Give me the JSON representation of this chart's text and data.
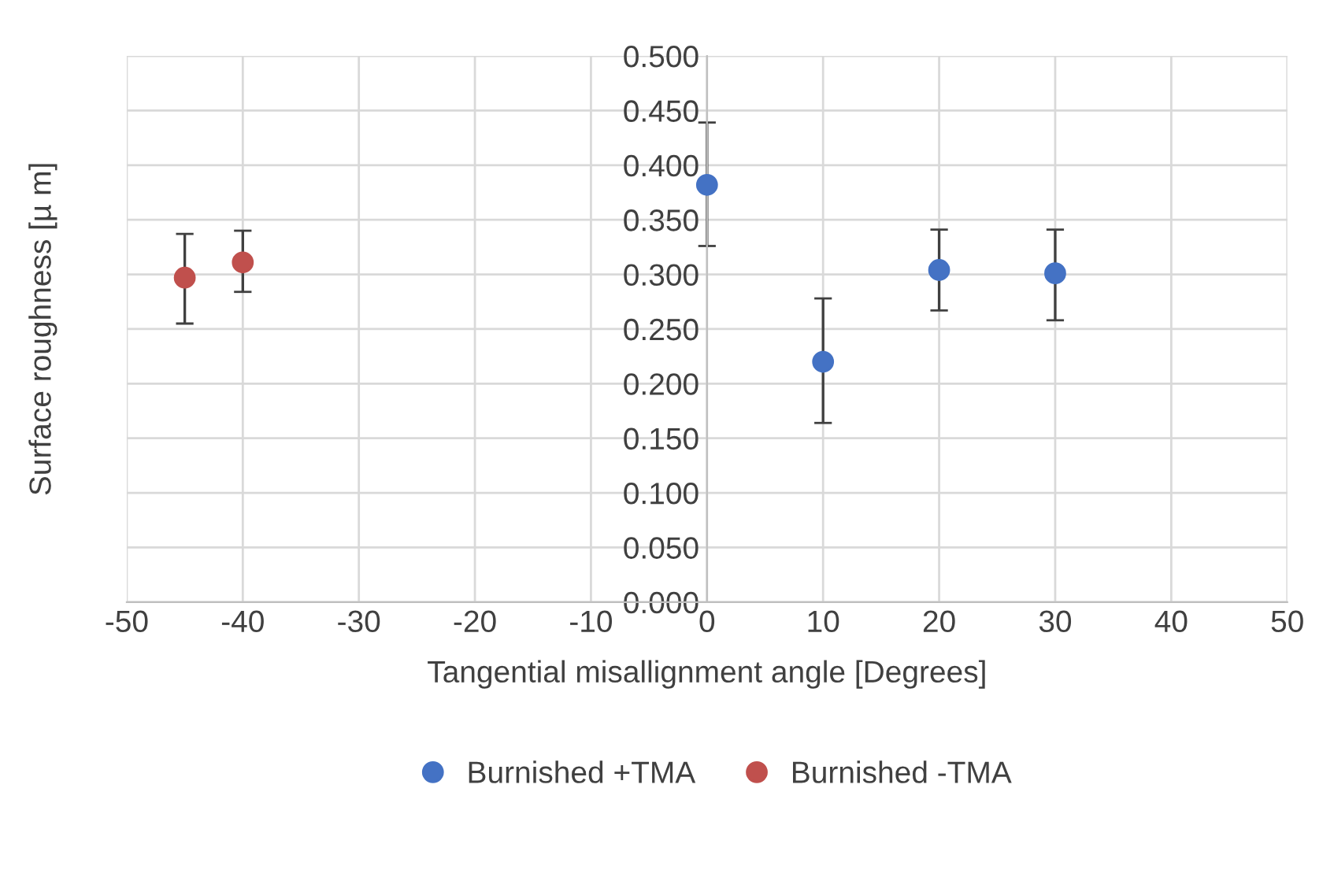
{
  "chart_data": {
    "type": "scatter",
    "xlabel": "Tangential misallignment angle [Degrees]",
    "ylabel": "Surface roughness [µ m]",
    "xlim": [
      -50,
      50
    ],
    "xticks": [
      -50,
      -40,
      -30,
      -20,
      -10,
      0,
      10,
      20,
      30,
      40,
      50
    ],
    "ylim": [
      0,
      0.5
    ],
    "yticks": [
      {
        "value": 0,
        "label": "0.000"
      },
      {
        "value": 0.05,
        "label": "0.050"
      },
      {
        "value": 0.1,
        "label": "0.100"
      },
      {
        "value": 0.15,
        "label": "0.150"
      },
      {
        "value": 0.2,
        "label": "0.200"
      },
      {
        "value": 0.25,
        "label": "0.250"
      },
      {
        "value": 0.3,
        "label": "0.300"
      },
      {
        "value": 0.35,
        "label": "0.350"
      },
      {
        "value": 0.4,
        "label": "0.400"
      },
      {
        "value": 0.45,
        "label": "0.450"
      },
      {
        "value": 0.5,
        "label": "0.500"
      }
    ],
    "grid": true,
    "legend": "bottom",
    "marker": "circle",
    "series": [
      {
        "name": "Burnished +TMA",
        "color": "#4472c4",
        "x": [
          0,
          10,
          20,
          30
        ],
        "values": [
          0.382,
          0.22,
          0.304,
          0.301
        ],
        "errors": [
          [
            0.326,
            0.439
          ],
          [
            0.164,
            0.278
          ],
          [
            0.267,
            0.341
          ],
          [
            0.258,
            0.341
          ]
        ]
      },
      {
        "name": "Burnished -TMA",
        "color": "#c0504d",
        "x": [
          -45,
          -40
        ],
        "values": [
          0.297,
          0.311
        ],
        "errors": [
          [
            0.255,
            0.337
          ],
          [
            0.284,
            0.34
          ]
        ]
      }
    ]
  }
}
